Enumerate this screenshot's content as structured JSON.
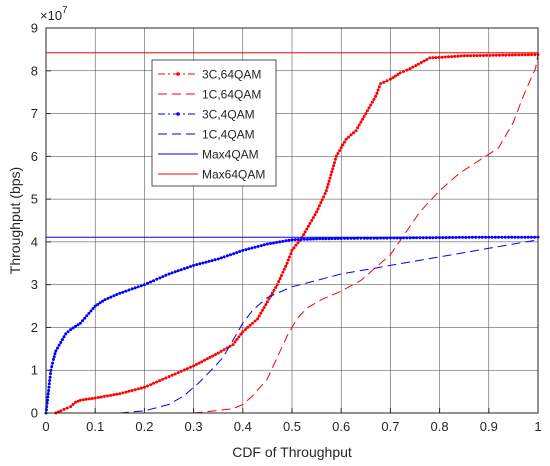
{
  "chart_data": {
    "type": "line",
    "xlabel": "CDF of Throughput",
    "ylabel": "Throughput (bps)",
    "xlim": [
      0,
      1
    ],
    "ylim": [
      0,
      90000000
    ],
    "y_exponent_label": "×10",
    "y_exponent_power": "7",
    "grid": true,
    "legend_position": "upper-left-inside",
    "x_tick_labels": [
      "0",
      "0.1",
      "0.2",
      "0.3",
      "0.4",
      "0.5",
      "0.6",
      "0.7",
      "0.8",
      "0.9",
      "1"
    ],
    "y_tick_labels": [
      "0",
      "1",
      "2",
      "3",
      "4",
      "5",
      "6",
      "7",
      "8",
      "9"
    ],
    "colors": {
      "red": "#ff0000",
      "blue": "#0000ff"
    },
    "series": [
      {
        "name": "3C,64QAM",
        "color": "#ff0000",
        "style": "dashdot-dots",
        "points": [
          [
            0.02,
            0
          ],
          [
            0.03,
            500000
          ],
          [
            0.05,
            1500000
          ],
          [
            0.06,
            2500000
          ],
          [
            0.07,
            3000000
          ],
          [
            0.1,
            3500000
          ],
          [
            0.15,
            4500000
          ],
          [
            0.2,
            6000000
          ],
          [
            0.25,
            8500000
          ],
          [
            0.3,
            11000000
          ],
          [
            0.35,
            14000000
          ],
          [
            0.38,
            16000000
          ],
          [
            0.4,
            19000000
          ],
          [
            0.43,
            22000000
          ],
          [
            0.44,
            24000000
          ],
          [
            0.45,
            26000000
          ],
          [
            0.47,
            30000000
          ],
          [
            0.49,
            35000000
          ],
          [
            0.5,
            38000000
          ],
          [
            0.52,
            41000000
          ],
          [
            0.53,
            43000000
          ],
          [
            0.55,
            47000000
          ],
          [
            0.57,
            52000000
          ],
          [
            0.59,
            60000000
          ],
          [
            0.61,
            64000000
          ],
          [
            0.63,
            66000000
          ],
          [
            0.65,
            70000000
          ],
          [
            0.67,
            74000000
          ],
          [
            0.68,
            77000000
          ],
          [
            0.7,
            78000000
          ],
          [
            0.72,
            79500000
          ],
          [
            0.74,
            80500000
          ],
          [
            0.78,
            83000000
          ],
          [
            0.85,
            83500000
          ],
          [
            1.0,
            83800000
          ]
        ]
      },
      {
        "name": "1C,64QAM",
        "color": "#ff0000",
        "style": "dashed",
        "points": [
          [
            0.3,
            0
          ],
          [
            0.32,
            200000
          ],
          [
            0.35,
            600000
          ],
          [
            0.38,
            1000000
          ],
          [
            0.4,
            2000000
          ],
          [
            0.42,
            4000000
          ],
          [
            0.45,
            8000000
          ],
          [
            0.47,
            13000000
          ],
          [
            0.49,
            18000000
          ],
          [
            0.51,
            22000000
          ],
          [
            0.53,
            24500000
          ],
          [
            0.56,
            26500000
          ],
          [
            0.6,
            28500000
          ],
          [
            0.64,
            31000000
          ],
          [
            0.67,
            34000000
          ],
          [
            0.7,
            37000000
          ],
          [
            0.73,
            42000000
          ],
          [
            0.76,
            47000000
          ],
          [
            0.8,
            52000000
          ],
          [
            0.84,
            56000000
          ],
          [
            0.88,
            59000000
          ],
          [
            0.92,
            62000000
          ],
          [
            0.95,
            68000000
          ],
          [
            0.97,
            74000000
          ],
          [
            0.985,
            78000000
          ],
          [
            0.995,
            80500000
          ],
          [
            1.0,
            83800000
          ]
        ]
      },
      {
        "name": "3C,4QAM",
        "color": "#0000ff",
        "style": "dashdot-dots",
        "points": [
          [
            0,
            0
          ],
          [
            0.003,
            3000000
          ],
          [
            0.006,
            6000000
          ],
          [
            0.01,
            10000000
          ],
          [
            0.015,
            12500000
          ],
          [
            0.02,
            14500000
          ],
          [
            0.03,
            16500000
          ],
          [
            0.04,
            18500000
          ],
          [
            0.05,
            19500000
          ],
          [
            0.07,
            21000000
          ],
          [
            0.1,
            25000000
          ],
          [
            0.12,
            26500000
          ],
          [
            0.15,
            28000000
          ],
          [
            0.2,
            30000000
          ],
          [
            0.25,
            32500000
          ],
          [
            0.3,
            34500000
          ],
          [
            0.35,
            36000000
          ],
          [
            0.4,
            38000000
          ],
          [
            0.45,
            39500000
          ],
          [
            0.5,
            40500000
          ],
          [
            0.55,
            40700000
          ],
          [
            0.6,
            40800000
          ],
          [
            0.7,
            40900000
          ],
          [
            0.8,
            41000000
          ],
          [
            0.9,
            41100000
          ],
          [
            1.0,
            41100000
          ]
        ]
      },
      {
        "name": "1C,4QAM",
        "color": "#0000ff",
        "style": "dashed",
        "points": [
          [
            0.15,
            0
          ],
          [
            0.2,
            500000
          ],
          [
            0.25,
            2000000
          ],
          [
            0.28,
            4000000
          ],
          [
            0.31,
            7000000
          ],
          [
            0.34,
            10500000
          ],
          [
            0.36,
            13000000
          ],
          [
            0.38,
            17000000
          ],
          [
            0.4,
            21000000
          ],
          [
            0.42,
            24000000
          ],
          [
            0.45,
            27000000
          ],
          [
            0.5,
            29500000
          ],
          [
            0.55,
            31000000
          ],
          [
            0.6,
            32500000
          ],
          [
            0.65,
            33500000
          ],
          [
            0.7,
            34500000
          ],
          [
            0.75,
            35500000
          ],
          [
            0.8,
            36500000
          ],
          [
            0.85,
            37500000
          ],
          [
            0.9,
            38500000
          ],
          [
            0.95,
            39500000
          ],
          [
            1.0,
            40500000
          ]
        ]
      },
      {
        "name": "Max4QAM",
        "color": "#0000ff",
        "style": "solid",
        "points": [
          [
            0,
            41100000
          ],
          [
            1,
            41100000
          ]
        ]
      },
      {
        "name": "Max64QAM",
        "color": "#ff0000",
        "style": "solid",
        "points": [
          [
            0,
            84200000
          ],
          [
            1,
            84200000
          ]
        ]
      }
    ]
  }
}
